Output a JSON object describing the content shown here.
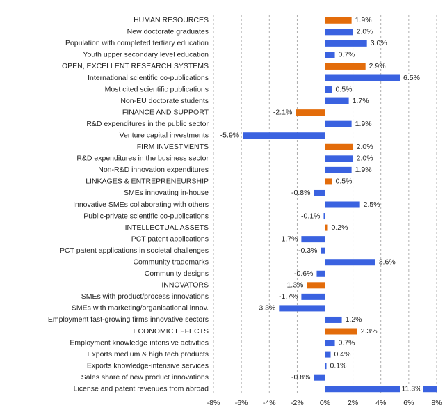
{
  "chart_data": {
    "type": "barh",
    "categories": [
      "HUMAN RESOURCES",
      "New doctorate graduates",
      "Population with completed tertiary education",
      "Youth upper secondary level education",
      "OPEN, EXCELLENT RESEARCH SYSTEMS",
      "International scientific co-publications",
      "Most cited scientific publications",
      "Non-EU doctorate students",
      "FINANCE AND SUPPORT",
      "R&D expenditures in the public sector",
      "Venture capital investments",
      "FIRM INVESTMENTS",
      "R&D expenditures in the business sector",
      "Non-R&D innovation expenditures",
      "LINKAGES & ENTREPRENEURSHIP",
      "SMEs innovating in-house",
      "Innovative SMEs collaborating with others",
      "Public-private scientific co-publications",
      "INTELLECTUAL ASSETS",
      "PCT patent applications",
      "PCT patent applications in societal challenges",
      "Community trademarks",
      "Community designs",
      "INNOVATORS",
      "SMEs with product/process innovations",
      "SMEs with marketing/organisational innov.",
      "Employment fast-growing firms innovative sectors",
      "ECONOMIC EFFECTS",
      "Employment knowledge-intensive activities",
      "Exports medium & high tech products",
      "Exports knowledge-intensive services",
      "Sales share of new product innovations",
      "License and patent revenues from abroad"
    ],
    "values": [
      1.9,
      2.0,
      3.0,
      0.7,
      2.9,
      6.5,
      0.5,
      1.7,
      -2.1,
      1.9,
      -5.9,
      2.0,
      2.0,
      1.9,
      0.5,
      -0.8,
      2.5,
      -0.1,
      0.2,
      -1.7,
      -0.3,
      3.6,
      -0.6,
      -1.3,
      -1.7,
      -3.3,
      1.2,
      2.3,
      0.7,
      0.4,
      0.1,
      -0.8,
      11.3
    ],
    "value_labels": [
      "1.9%",
      "2.0%",
      "3.0%",
      "0.7%",
      "2.9%",
      "6.5%",
      "0.5%",
      "1.7%",
      "-2.1%",
      "1.9%",
      "-5.9%",
      "2.0%",
      "2.0%",
      "1.9%",
      "0.5%",
      "-0.8%",
      "2.5%",
      "-0.1%",
      "0.2%",
      "-1.7%",
      "-0.3%",
      "3.6%",
      "-0.6%",
      "-1.3%",
      "-1.7%",
      "-3.3%",
      "1.2%",
      "2.3%",
      "0.7%",
      "0.4%",
      "0.1%",
      "-0.8%",
      "11.3%"
    ],
    "colors": [
      "#e36c0a",
      "#3a62e0",
      "#3a62e0",
      "#3a62e0",
      "#e36c0a",
      "#3a62e0",
      "#3a62e0",
      "#3a62e0",
      "#e36c0a",
      "#3a62e0",
      "#3a62e0",
      "#e36c0a",
      "#3a62e0",
      "#3a62e0",
      "#e36c0a",
      "#3a62e0",
      "#3a62e0",
      "#3a62e0",
      "#e36c0a",
      "#3a62e0",
      "#3a62e0",
      "#3a62e0",
      "#3a62e0",
      "#e36c0a",
      "#3a62e0",
      "#3a62e0",
      "#3a62e0",
      "#e36c0a",
      "#3a62e0",
      "#3a62e0",
      "#3a62e0",
      "#3a62e0",
      "#3a62e0"
    ],
    "xlim": [
      -8,
      8
    ],
    "xticks": [
      {
        "value": -8,
        "label": "-8%"
      },
      {
        "value": -6,
        "label": "-6%"
      },
      {
        "value": -4,
        "label": "-4%"
      },
      {
        "value": -2,
        "label": "-2%"
      },
      {
        "value": 0,
        "label": "0%"
      },
      {
        "value": 2,
        "label": "2%"
      },
      {
        "value": 4,
        "label": "4%"
      },
      {
        "value": 6,
        "label": "6%"
      },
      {
        "value": 8,
        "label": "8%"
      }
    ],
    "grid": true
  }
}
